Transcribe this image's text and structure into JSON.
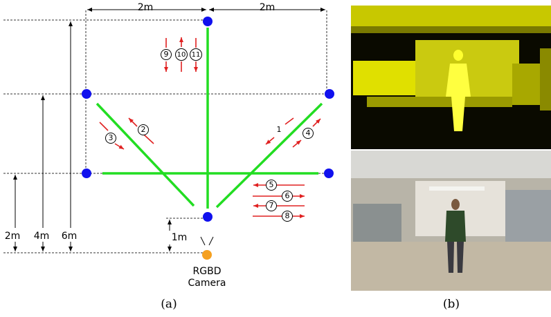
{
  "dimensions": {
    "top_left": "2m",
    "top_right": "2m",
    "left_2m": "2m",
    "left_4m": "4m",
    "left_6m": "6m",
    "camera_offset": "1m"
  },
  "camera": [
    "RGBD",
    "Camera"
  ],
  "markers": [
    "1",
    "2",
    "3",
    "4",
    "5",
    "6",
    "7",
    "8",
    "9",
    "10",
    "11"
  ],
  "captions": [
    "(a)",
    "(b)"
  ]
}
